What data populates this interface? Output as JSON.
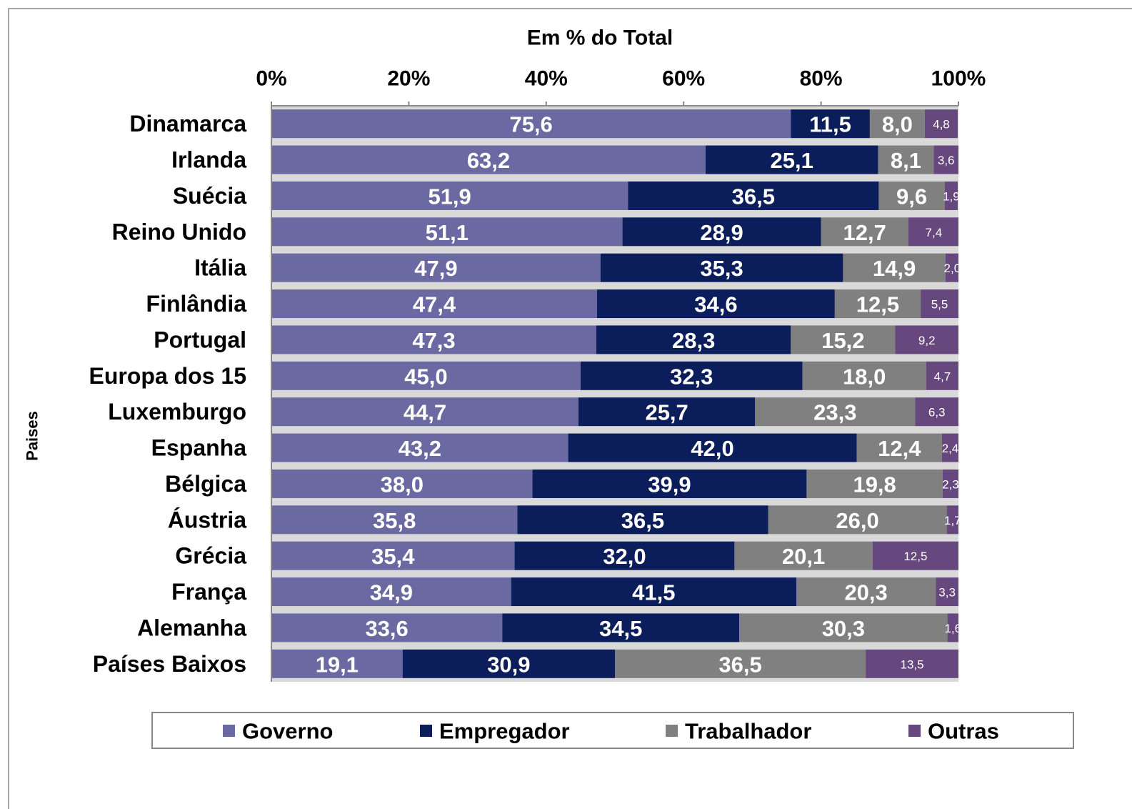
{
  "chart_data": {
    "type": "stacked-bar-horizontal",
    "title": "Em % do Total",
    "y_label": "Paises",
    "categories": [
      "Dinamarca",
      "Irlanda",
      "Suécia",
      "Reino Unido",
      "Itália",
      "Finlândia",
      "Portugal",
      "Europa dos 15",
      "Luxemburgo",
      "Espanha",
      "Bélgica",
      "Áustria",
      "Grécia",
      "França",
      "Alemanha",
      "Países Baixos"
    ],
    "series": [
      {
        "name": "Governo",
        "color": "#6b69a1",
        "values": [
          75.6,
          63.2,
          51.9,
          51.1,
          47.9,
          47.4,
          47.3,
          45.0,
          44.7,
          43.2,
          38.0,
          35.8,
          35.4,
          34.9,
          33.6,
          19.1
        ],
        "value_labels": [
          "75,6",
          "63,2",
          "51,9",
          "51,1",
          "47,9",
          "47,4",
          "47,3",
          "45,0",
          "44,7",
          "43,2",
          "38,0",
          "35,8",
          "35,4",
          "34,9",
          "33,6",
          "19,1"
        ]
      },
      {
        "name": "Empregador",
        "color": "#0c1d5b",
        "values": [
          11.5,
          25.1,
          36.5,
          28.9,
          35.3,
          34.6,
          28.3,
          32.3,
          25.7,
          42.0,
          39.9,
          36.5,
          32.0,
          41.5,
          34.5,
          30.9
        ],
        "value_labels": [
          "11,5",
          "25,1",
          "36,5",
          "28,9",
          "35,3",
          "34,6",
          "28,3",
          "32,3",
          "25,7",
          "42,0",
          "39,9",
          "36,5",
          "32,0",
          "41,5",
          "34,5",
          "30,9"
        ]
      },
      {
        "name": "Trabalhador",
        "color": "#808080",
        "values": [
          8.0,
          8.1,
          9.6,
          12.7,
          14.9,
          12.5,
          15.2,
          18.0,
          23.3,
          12.4,
          19.8,
          26.0,
          20.1,
          20.3,
          30.3,
          36.5
        ],
        "value_labels": [
          "8,0",
          "8,1",
          "9,6",
          "12,7",
          "14,9",
          "12,5",
          "15,2",
          "18,0",
          "23,3",
          "12,4",
          "19,8",
          "26,0",
          "20,1",
          "20,3",
          "30,3",
          "36,5"
        ]
      },
      {
        "name": "Outras",
        "color": "#66487e",
        "values": [
          4.8,
          3.6,
          1.9,
          7.4,
          2.0,
          5.5,
          9.2,
          4.7,
          6.3,
          2.4,
          2.3,
          1.7,
          12.5,
          3.3,
          1.6,
          13.5
        ],
        "value_labels": [
          "4,8",
          "3,6",
          "1,9",
          "7,4",
          "2,0",
          "5,5",
          "9,2",
          "4,7",
          "6,3",
          "2,4",
          "2,3",
          "1,7",
          "12,5",
          "3,3",
          "1,6",
          "13,5"
        ]
      }
    ],
    "xlim": [
      0,
      100
    ],
    "xticks": [
      {
        "value": 0,
        "label": "0%"
      },
      {
        "value": 20,
        "label": "20%"
      },
      {
        "value": 40,
        "label": "40%"
      },
      {
        "value": 60,
        "label": "60%"
      },
      {
        "value": 80,
        "label": "80%"
      },
      {
        "value": 100,
        "label": "100%"
      }
    ],
    "legend": "bottom"
  }
}
